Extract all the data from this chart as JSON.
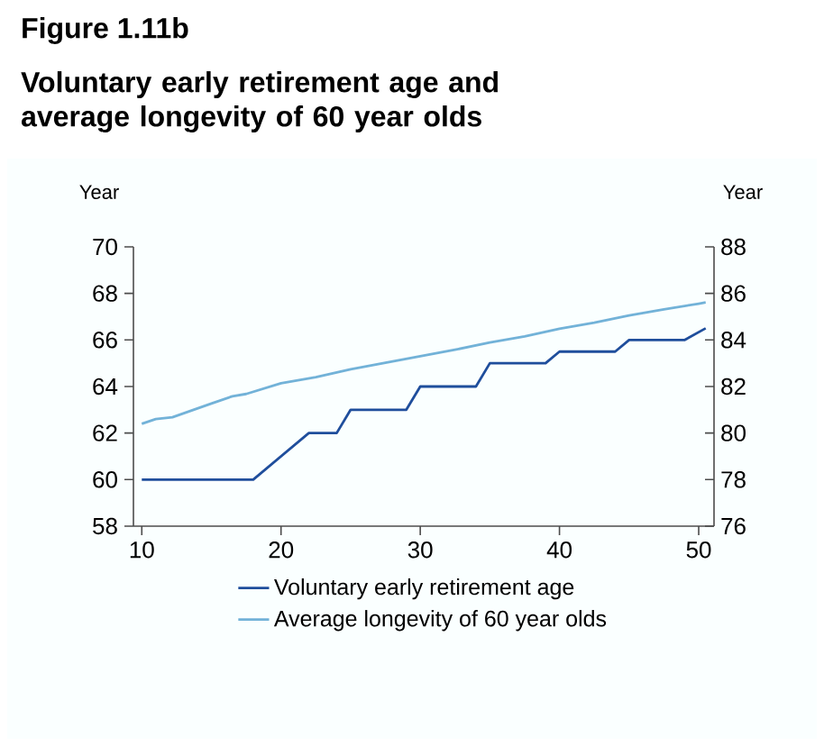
{
  "chart_data": {
    "type": "line",
    "title": "Figure 1.11b",
    "subtitle": "Voluntary early retirement age and average longevity of 60 year olds",
    "ylabel": "Year",
    "y2label": "Year",
    "xlim": [
      9.4,
      51.1
    ],
    "xticks": [
      10,
      20,
      30,
      40,
      50
    ],
    "ylim": [
      58,
      70
    ],
    "yticks": [
      58,
      60,
      62,
      64,
      66,
      68,
      70
    ],
    "y2lim": [
      76,
      88
    ],
    "y2ticks": [
      76,
      78,
      80,
      82,
      84,
      86,
      88
    ],
    "legend": "bottom",
    "series": [
      {
        "name": "Voluntary early retirement age",
        "color": "#1f4e9c",
        "x": [
          10,
          18,
          22,
          24,
          25,
          29,
          30,
          34,
          35,
          39,
          40,
          44,
          45,
          49,
          50.5
        ],
        "values": [
          60,
          60,
          62,
          62,
          63,
          63,
          64,
          64,
          65,
          65,
          65.5,
          65.5,
          66,
          66,
          66.5
        ]
      },
      {
        "name": "Average longevity  of 60 year olds",
        "color": "#72b2d8",
        "axis": "y2",
        "x": [
          10,
          11,
          12.2,
          15,
          16.5,
          17.5,
          20,
          22.5,
          25,
          27.5,
          30,
          32.5,
          35,
          37.5,
          40,
          42.5,
          45,
          47.5,
          50,
          50.5
        ],
        "values": [
          80.4,
          80.6,
          80.68,
          81.27,
          81.58,
          81.68,
          82.14,
          82.4,
          82.74,
          83.02,
          83.3,
          83.58,
          83.89,
          84.15,
          84.48,
          84.74,
          85.05,
          85.31,
          85.56,
          85.61
        ]
      }
    ]
  }
}
